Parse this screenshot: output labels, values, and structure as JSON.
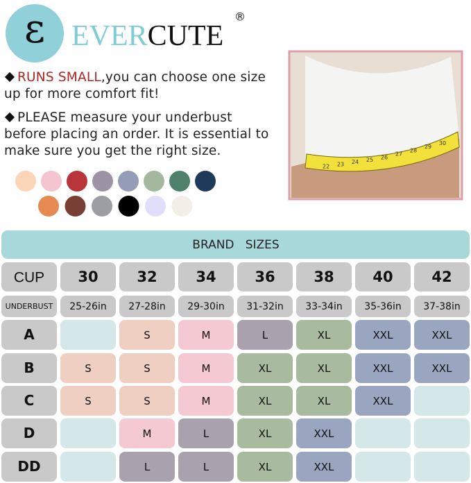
{
  "logo": {
    "mark": "ε",
    "name_light": "EVER",
    "name_dark": "CUTE",
    "registered": "®"
  },
  "notes": [
    {
      "highlight": "RUNS SMALL",
      "text": ",you can choose one size up for more comfort fit!"
    },
    {
      "highlight": "PLEASE",
      "text": " measure your underbust before placing an order. It is essential to make sure you get the right size."
    }
  ],
  "swatches": [
    [
      "#fcd5b8",
      "#f5c5cf",
      "#b8353a",
      "#9e93a5",
      "#959cb7",
      "#a3b89d",
      "#4e806a",
      "#1f3b5c"
    ],
    [
      "#e48a52",
      "#7a3f34",
      "#9c9ea3",
      "#000000",
      "#e0defa",
      "#f3efe8"
    ]
  ],
  "photo": {
    "tape_labels": [
      "22",
      "23",
      "24",
      "25",
      "26",
      "27",
      "28",
      "29",
      "30"
    ]
  },
  "table": {
    "title": "BRAND   SIZES",
    "cup_label": "CUP",
    "underbust_label": "UNDERBUST",
    "bands": [
      "30",
      "32",
      "34",
      "36",
      "38",
      "40",
      "42"
    ],
    "underbust": [
      "25-26in",
      "27-28in",
      "29-30in",
      "31-32in",
      "33-34in",
      "35-36in",
      "37-38in"
    ],
    "size_colors": {
      "S": "#f0cfc3",
      "M": "#f4c9d2",
      "L": "#a9a1ae",
      "XL": "#a9bb9e",
      "XXL": "#9aa5c0"
    },
    "empty_color": "#d4e8ea",
    "rows": [
      {
        "cup": "A",
        "sizes": [
          null,
          "S",
          "M",
          "L",
          "XL",
          "XXL",
          "XXL"
        ]
      },
      {
        "cup": "B",
        "sizes": [
          "S",
          "S",
          "M",
          "XL",
          "XL",
          "XXL",
          "XXL"
        ]
      },
      {
        "cup": "C",
        "sizes": [
          "S",
          "S",
          "M",
          "XL",
          "XL",
          "XXL",
          null
        ]
      },
      {
        "cup": "D",
        "sizes": [
          null,
          "M",
          "L",
          "XL",
          "XXL",
          null,
          null
        ]
      },
      {
        "cup": "DD",
        "sizes": [
          null,
          "L",
          "L",
          "XL",
          "XXL",
          null,
          null
        ]
      }
    ]
  }
}
